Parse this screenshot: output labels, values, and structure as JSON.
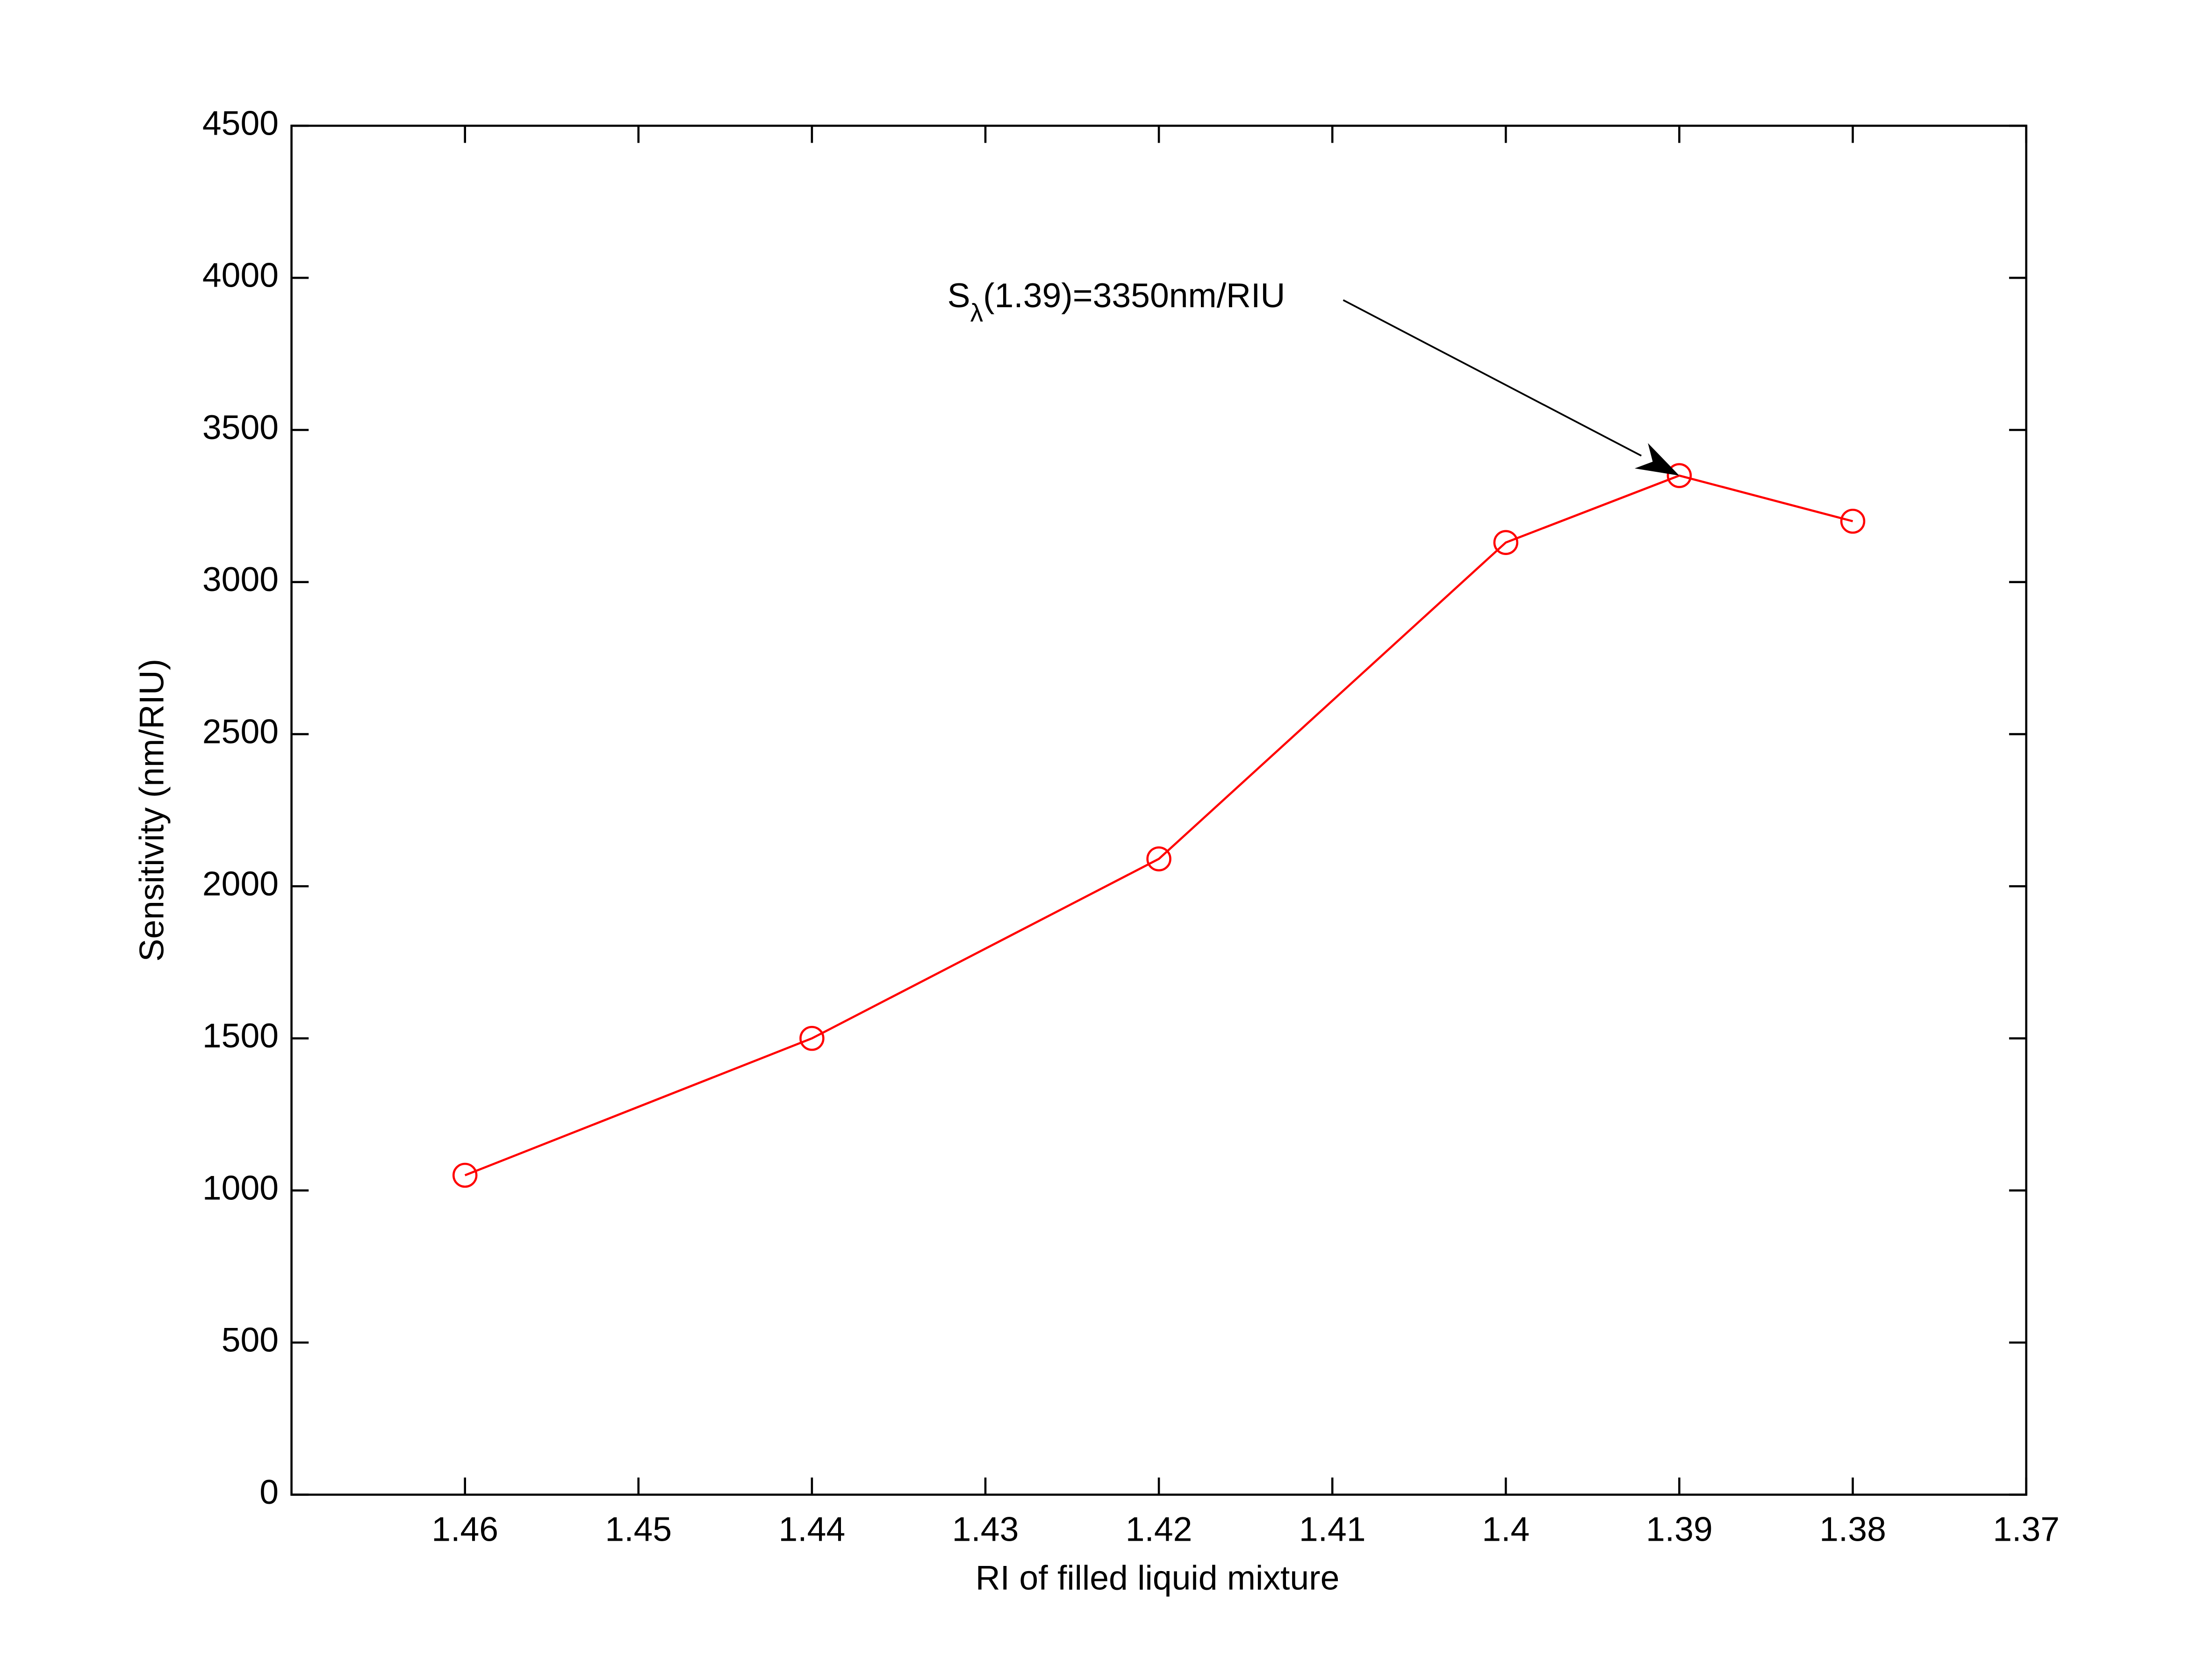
{
  "chart_data": {
    "type": "line",
    "x_label": "RI of filled liquid mixture",
    "y_label": "Sensitivity (nm/RIU)",
    "x": [
      1.46,
      1.44,
      1.42,
      1.4,
      1.39,
      1.38
    ],
    "series": [
      {
        "color": "#ff0000",
        "values": [
          1050,
          1500,
          2090,
          3130,
          3350,
          3200
        ]
      }
    ],
    "xlim": [
      1.47,
      1.37
    ],
    "xticks": [
      1.46,
      1.45,
      1.44,
      1.43,
      1.42,
      1.41,
      1.4,
      1.39,
      1.38,
      1.37
    ],
    "ylim": [
      0,
      4500
    ],
    "yticks": [
      0,
      500,
      1000,
      1500,
      2000,
      2500,
      3000,
      3500,
      4000,
      4500
    ],
    "grid": false,
    "annotation": {
      "parts": [
        "S",
        "λ",
        "(1.39)=3350nm/RIU"
      ],
      "x": 1.39,
      "y": 3350
    }
  }
}
